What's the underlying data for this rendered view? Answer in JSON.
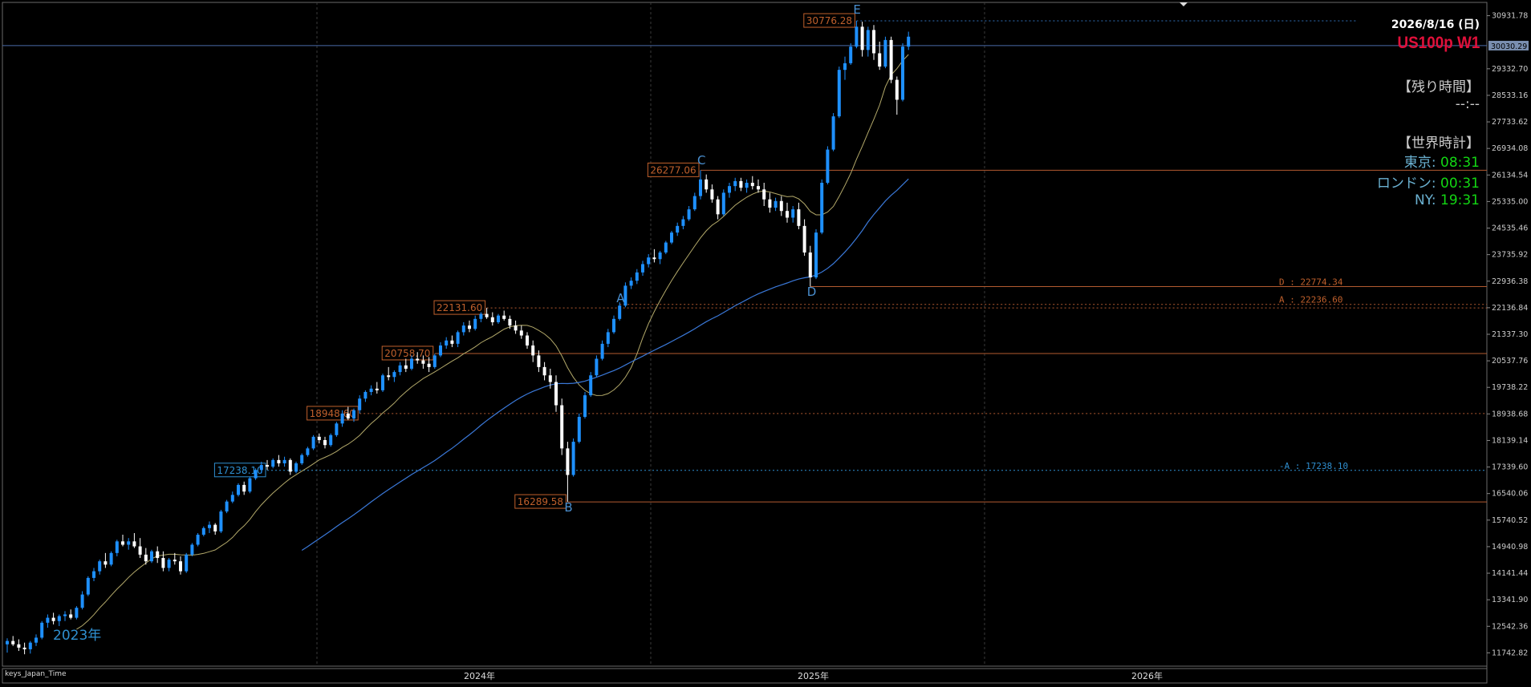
{
  "header": {
    "date": "2026/8/16 (日)",
    "symbol": "US100p W1"
  },
  "panel": {
    "remaining_title": "【残り時間】",
    "remaining_value": "--:--",
    "world_clock_title": "【世界時計】",
    "clocks": [
      {
        "city": "東京:",
        "time": "08:31"
      },
      {
        "city": "ロンドン:",
        "time": "00:31"
      },
      {
        "city": "NY:",
        "time": "19:31"
      }
    ]
  },
  "left_label": "2023年",
  "footer_label": "keys_Japan_Time",
  "colors": {
    "background": "#000000",
    "bull": "#1e90ff",
    "bear": "#ffffff",
    "level_line": "#b35a30",
    "ma_fast": "#b3a96a",
    "ma_slow": "#3a78d8",
    "symbol": "#e0103a",
    "clock_time": "#13d613"
  },
  "chart_data": {
    "type": "candlestick",
    "timeframe": "W1",
    "y_ticks": [
      "30931.78",
      "29332.70",
      "28533.16",
      "27733.62",
      "26934.08",
      "26134.54",
      "25335.00",
      "24535.46",
      "23735.92",
      "22936.38",
      "22136.84",
      "21337.30",
      "20537.76",
      "19738.22",
      "18938.68",
      "18139.14",
      "17339.60",
      "16540.06",
      "15740.52",
      "14940.98",
      "14141.44",
      "13341.90",
      "12542.36",
      "11742.82"
    ],
    "current_price": "30030.29",
    "x_ticks": [
      "2024年",
      "2025年",
      "2026年"
    ],
    "ylim": [
      11342,
      31332
    ],
    "price_levels": [
      {
        "label": "30776.28",
        "value": 30776.28,
        "style": "dotted",
        "color": "#2f6fb8"
      },
      {
        "label": "26277.06",
        "value": 26277.06,
        "style": "solid",
        "color": "#b35a30"
      },
      {
        "label": "22131.60",
        "value": 22131.6,
        "style": "dotted",
        "color": "#b35a30"
      },
      {
        "label": "20758.70",
        "value": 20758.7,
        "style": "solid",
        "color": "#b35a30"
      },
      {
        "label": "18948.60",
        "value": 18948.6,
        "style": "dotted",
        "color": "#b35a30"
      },
      {
        "label": "17238.10",
        "value": 17238.1,
        "style": "dotted",
        "color": "#2f8fd0"
      },
      {
        "label": "16289.58",
        "value": 16289.58,
        "style": "solid",
        "color": "#b35a30"
      }
    ],
    "right_levels": [
      {
        "label": "D : 22774.34",
        "value": 22774.34
      },
      {
        "label": "A : 22236.60",
        "value": 22236.6
      },
      {
        "label": "-A : 17238.10",
        "value": 17238.1
      }
    ],
    "wave_labels": [
      {
        "text": "A",
        "value": 22300
      },
      {
        "text": "B",
        "value": 16000
      },
      {
        "text": "C",
        "value": 26450
      },
      {
        "text": "D",
        "value": 22500
      },
      {
        "text": "E",
        "value": 31000
      }
    ],
    "candles": [
      [
        12000,
        12180,
        11750,
        12100
      ],
      [
        12100,
        12250,
        11950,
        12000
      ],
      [
        12000,
        12150,
        11800,
        11900
      ],
      [
        11900,
        12050,
        11700,
        11850
      ],
      [
        11850,
        12100,
        11720,
        12050
      ],
      [
        12050,
        12300,
        11950,
        12200
      ],
      [
        12200,
        12700,
        12150,
        12650
      ],
      [
        12650,
        12900,
        12500,
        12800
      ],
      [
        12800,
        12950,
        12600,
        12700
      ],
      [
        12700,
        12900,
        12550,
        12850
      ],
      [
        12850,
        13000,
        12700,
        12900
      ],
      [
        12900,
        13050,
        12750,
        12800
      ],
      [
        12800,
        13150,
        12750,
        13100
      ],
      [
        13100,
        13600,
        13050,
        13500
      ],
      [
        13500,
        14050,
        13450,
        14000
      ],
      [
        14000,
        14300,
        13900,
        14200
      ],
      [
        14200,
        14550,
        14100,
        14500
      ],
      [
        14500,
        14750,
        14300,
        14400
      ],
      [
        14400,
        14800,
        14350,
        14750
      ],
      [
        14750,
        15150,
        14650,
        15100
      ],
      [
        15100,
        15300,
        14950,
        15000
      ],
      [
        15000,
        15200,
        14850,
        15100
      ],
      [
        15100,
        15350,
        14900,
        14950
      ],
      [
        14950,
        15200,
        14600,
        14700
      ],
      [
        14700,
        14900,
        14400,
        14500
      ],
      [
        14500,
        14850,
        14450,
        14800
      ],
      [
        14800,
        14950,
        14450,
        14600
      ],
      [
        14600,
        14800,
        14200,
        14300
      ],
      [
        14300,
        14600,
        14200,
        14550
      ],
      [
        14550,
        14750,
        14400,
        14500
      ],
      [
        14500,
        14650,
        14100,
        14200
      ],
      [
        14200,
        14750,
        14150,
        14700
      ],
      [
        14700,
        15050,
        14650,
        15000
      ],
      [
        15000,
        15350,
        14950,
        15300
      ],
      [
        15300,
        15550,
        15250,
        15500
      ],
      [
        15500,
        15700,
        15350,
        15600
      ],
      [
        15600,
        15650,
        15300,
        15400
      ],
      [
        15400,
        16050,
        15350,
        16000
      ],
      [
        16000,
        16350,
        15950,
        16300
      ],
      [
        16300,
        16600,
        16250,
        16500
      ],
      [
        16500,
        16850,
        16450,
        16800
      ],
      [
        16800,
        16900,
        16500,
        16600
      ],
      [
        16600,
        17050,
        16550,
        17000
      ],
      [
        17000,
        17300,
        16950,
        17250
      ],
      [
        17250,
        17500,
        17150,
        17400
      ],
      [
        17400,
        17550,
        17250,
        17350
      ],
      [
        17350,
        17600,
        17300,
        17550
      ],
      [
        17550,
        17700,
        17350,
        17450
      ],
      [
        17450,
        17650,
        17350,
        17550
      ],
      [
        17550,
        17600,
        17100,
        17200
      ],
      [
        17200,
        17500,
        17150,
        17450
      ],
      [
        17450,
        17750,
        17400,
        17700
      ],
      [
        17700,
        17950,
        17650,
        17900
      ],
      [
        17900,
        18300,
        17850,
        18250
      ],
      [
        18250,
        18350,
        18050,
        18150
      ],
      [
        18150,
        18250,
        17900,
        18000
      ],
      [
        18000,
        18350,
        17950,
        18300
      ],
      [
        18300,
        18700,
        18250,
        18650
      ],
      [
        18650,
        19050,
        18550,
        18950
      ],
      [
        18950,
        19150,
        18750,
        18800
      ],
      [
        18800,
        19100,
        18700,
        19050
      ],
      [
        19050,
        19500,
        18950,
        19400
      ],
      [
        19400,
        19650,
        19300,
        19600
      ],
      [
        19600,
        19800,
        19500,
        19700
      ],
      [
        19700,
        19900,
        19550,
        19650
      ],
      [
        19650,
        20150,
        19600,
        20100
      ],
      [
        20100,
        20350,
        19950,
        20050
      ],
      [
        20050,
        20250,
        19900,
        20200
      ],
      [
        20200,
        20500,
        20100,
        20400
      ],
      [
        20400,
        20600,
        20200,
        20300
      ],
      [
        20300,
        20700,
        20250,
        20600
      ],
      [
        20600,
        20800,
        20450,
        20550
      ],
      [
        20550,
        20700,
        20300,
        20450
      ],
      [
        20450,
        20650,
        20200,
        20350
      ],
      [
        20350,
        20750,
        20300,
        20700
      ],
      [
        20700,
        21100,
        20650,
        21000
      ],
      [
        21000,
        21250,
        20900,
        21150
      ],
      [
        21150,
        21300,
        20950,
        21050
      ],
      [
        21050,
        21450,
        20950,
        21400
      ],
      [
        21400,
        21700,
        21300,
        21600
      ],
      [
        21600,
        21750,
        21400,
        21500
      ],
      [
        21500,
        21900,
        21450,
        21800
      ],
      [
        21800,
        22000,
        21700,
        21950
      ],
      [
        21950,
        22131,
        21800,
        21850
      ],
      [
        21850,
        22000,
        21600,
        21700
      ],
      [
        21700,
        21950,
        21650,
        21900
      ],
      [
        21900,
        22050,
        21750,
        21800
      ],
      [
        21800,
        21900,
        21500,
        21600
      ],
      [
        21600,
        21750,
        21350,
        21450
      ],
      [
        21450,
        21600,
        21200,
        21300
      ],
      [
        21300,
        21400,
        20900,
        21000
      ],
      [
        21000,
        21150,
        20500,
        20700
      ],
      [
        20700,
        20850,
        20200,
        20350
      ],
      [
        20350,
        20500,
        19950,
        20100
      ],
      [
        20100,
        20300,
        19700,
        19900
      ],
      [
        19900,
        20100,
        19000,
        19200
      ],
      [
        19200,
        19400,
        17700,
        17900
      ],
      [
        17900,
        18100,
        16289,
        17100
      ],
      [
        17100,
        18200,
        17050,
        18100
      ],
      [
        18100,
        18950,
        18050,
        18850
      ],
      [
        18850,
        19600,
        18800,
        19500
      ],
      [
        19500,
        20200,
        19450,
        20100
      ],
      [
        20100,
        20700,
        20050,
        20600
      ],
      [
        20600,
        21150,
        20550,
        21050
      ],
      [
        21050,
        21500,
        20950,
        21400
      ],
      [
        21400,
        21900,
        21350,
        21800
      ],
      [
        21800,
        22300,
        21750,
        22200
      ],
      [
        22200,
        22900,
        22150,
        22800
      ],
      [
        22800,
        23050,
        22700,
        22950
      ],
      [
        22950,
        23300,
        22850,
        23200
      ],
      [
        23200,
        23550,
        23100,
        23450
      ],
      [
        23450,
        23750,
        23350,
        23650
      ],
      [
        23650,
        23900,
        23500,
        23600
      ],
      [
        23600,
        23850,
        23450,
        23800
      ],
      [
        23800,
        24150,
        23750,
        24100
      ],
      [
        24100,
        24450,
        24050,
        24400
      ],
      [
        24400,
        24700,
        24300,
        24600
      ],
      [
        24600,
        24900,
        24500,
        24800
      ],
      [
        24800,
        25200,
        24750,
        25100
      ],
      [
        25100,
        25600,
        25050,
        25500
      ],
      [
        25500,
        26277,
        25400,
        26000
      ],
      [
        26000,
        26150,
        25600,
        25700
      ],
      [
        25700,
        25850,
        25300,
        25400
      ],
      [
        25400,
        25500,
        24800,
        24950
      ],
      [
        24950,
        25700,
        24900,
        25600
      ],
      [
        25600,
        25900,
        25450,
        25800
      ],
      [
        25800,
        26050,
        25650,
        25950
      ],
      [
        25950,
        26050,
        25650,
        25750
      ],
      [
        25750,
        26000,
        25600,
        25900
      ],
      [
        25900,
        26100,
        25700,
        25800
      ],
      [
        25800,
        26000,
        25600,
        25700
      ],
      [
        25700,
        25900,
        25200,
        25400
      ],
      [
        25400,
        25600,
        25000,
        25150
      ],
      [
        25150,
        25450,
        25050,
        25350
      ],
      [
        25350,
        25500,
        24900,
        25050
      ],
      [
        25050,
        25300,
        24700,
        24850
      ],
      [
        24850,
        25200,
        24700,
        25100
      ],
      [
        25100,
        25300,
        24500,
        24600
      ],
      [
        24600,
        24800,
        23700,
        23800
      ],
      [
        23800,
        24000,
        22774,
        23050
      ],
      [
        23050,
        24500,
        23000,
        24400
      ],
      [
        24400,
        26000,
        24350,
        25900
      ],
      [
        25900,
        27000,
        25850,
        26900
      ],
      [
        26900,
        28000,
        26850,
        27900
      ],
      [
        27900,
        29400,
        27850,
        29300
      ],
      [
        29300,
        29700,
        29000,
        29500
      ],
      [
        29500,
        30100,
        29450,
        30000
      ],
      [
        30000,
        30776,
        29950,
        30600
      ],
      [
        30600,
        30750,
        29700,
        29900
      ],
      [
        29900,
        30600,
        29700,
        30500
      ],
      [
        30500,
        30650,
        29600,
        29800
      ],
      [
        29800,
        30150,
        29300,
        29400
      ],
      [
        29400,
        30300,
        29350,
        30200
      ],
      [
        30200,
        30300,
        28900,
        29000
      ],
      [
        29000,
        29100,
        27950,
        28400
      ],
      [
        28400,
        30100,
        28350,
        30000
      ],
      [
        30000,
        30450,
        29900,
        30300
      ]
    ],
    "ma_fast_type": "line",
    "ma_slow_type": "line"
  }
}
